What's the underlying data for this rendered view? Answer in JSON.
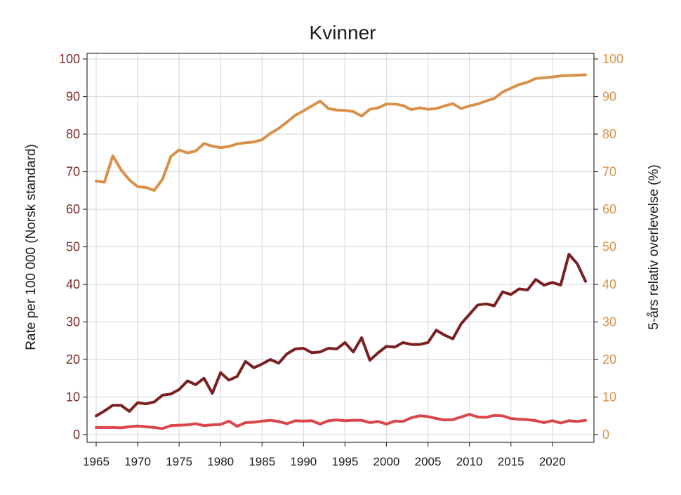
{
  "chart_data": {
    "type": "line",
    "title": "Kvinner",
    "ylabel": "Rate per 100 000 (Norsk standard)",
    "y2label": "5-års relativ overlevelse (%)",
    "xlabel": "",
    "xlim": [
      1965,
      2024
    ],
    "ylim": [
      0,
      100
    ],
    "y2lim": [
      0,
      100
    ],
    "grid": true,
    "x_ticks": [
      1965,
      1970,
      1975,
      1980,
      1985,
      1990,
      1995,
      2000,
      2005,
      2010,
      2015,
      2020
    ],
    "y_ticks": [
      0,
      10,
      20,
      30,
      40,
      50,
      60,
      70,
      80,
      90,
      100
    ],
    "y2_ticks": [
      0,
      10,
      20,
      30,
      40,
      50,
      60,
      70,
      80,
      90,
      100
    ],
    "left_tick_color": "#7a2a2a",
    "right_tick_color": "#d9914a",
    "x": [
      1965,
      1966,
      1967,
      1968,
      1969,
      1970,
      1971,
      1972,
      1973,
      1974,
      1975,
      1976,
      1977,
      1978,
      1979,
      1980,
      1981,
      1982,
      1983,
      1984,
      1985,
      1986,
      1987,
      1988,
      1989,
      1990,
      1991,
      1992,
      1993,
      1994,
      1995,
      1996,
      1997,
      1998,
      1999,
      2000,
      2001,
      2002,
      2003,
      2004,
      2005,
      2006,
      2007,
      2008,
      2009,
      2010,
      2011,
      2012,
      2013,
      2014,
      2015,
      2016,
      2017,
      2018,
      2019,
      2020,
      2021,
      2022,
      2023,
      2024
    ],
    "series": [
      {
        "axis": "right",
        "color": "#d9914a",
        "values": [
          67.5,
          67.2,
          74.2,
          70.5,
          67.8,
          66.0,
          65.8,
          65.0,
          68.0,
          74.0,
          75.8,
          75.0,
          75.5,
          77.5,
          76.8,
          76.4,
          76.7,
          77.4,
          77.7,
          77.9,
          78.5,
          80.2,
          81.5,
          83.2,
          85.0,
          86.2,
          87.5,
          88.8,
          86.8,
          86.4,
          86.3,
          86.0,
          84.8,
          86.6,
          87.0,
          88.0,
          88.0,
          87.6,
          86.5,
          87.0,
          86.6,
          86.8,
          87.5,
          88.1,
          86.8,
          87.5,
          88.0,
          88.8,
          89.5,
          91.2,
          92.2,
          93.2,
          93.8,
          94.8,
          95.0,
          95.2,
          95.5,
          95.6,
          95.7,
          95.8
        ]
      },
      {
        "axis": "left",
        "color": "#7a2020",
        "values": [
          5.0,
          6.3,
          7.8,
          7.8,
          6.2,
          8.5,
          8.2,
          8.7,
          10.5,
          10.8,
          12.0,
          14.3,
          13.3,
          15.0,
          11.0,
          16.5,
          14.5,
          15.5,
          19.5,
          17.8,
          18.8,
          20.0,
          19.0,
          21.5,
          22.8,
          23.0,
          21.8,
          22.0,
          23.0,
          22.8,
          24.5,
          22.0,
          25.8,
          19.8,
          21.8,
          23.5,
          23.3,
          24.5,
          24.0,
          24.0,
          24.5,
          27.8,
          26.5,
          25.5,
          29.5,
          32.0,
          34.5,
          34.8,
          34.3,
          38.0,
          37.3,
          38.8,
          38.5,
          41.3,
          39.8,
          40.5,
          39.8,
          48.0,
          45.5,
          40.8
        ]
      },
      {
        "axis": "left",
        "color": "#d9474a",
        "values": [
          1.9,
          1.9,
          1.9,
          1.8,
          2.1,
          2.3,
          2.1,
          1.9,
          1.6,
          2.4,
          2.5,
          2.6,
          2.9,
          2.4,
          2.6,
          2.7,
          3.6,
          2.2,
          3.2,
          3.3,
          3.6,
          3.8,
          3.5,
          2.9,
          3.7,
          3.6,
          3.7,
          2.8,
          3.7,
          3.9,
          3.7,
          3.8,
          3.8,
          3.2,
          3.5,
          2.8,
          3.6,
          3.5,
          4.5,
          5.0,
          4.8,
          4.3,
          3.9,
          4.0,
          4.7,
          5.4,
          4.7,
          4.6,
          5.1,
          5.0,
          4.3,
          4.1,
          4.0,
          3.7,
          3.2,
          3.7,
          3.1,
          3.7,
          3.5,
          3.8
        ]
      }
    ]
  }
}
